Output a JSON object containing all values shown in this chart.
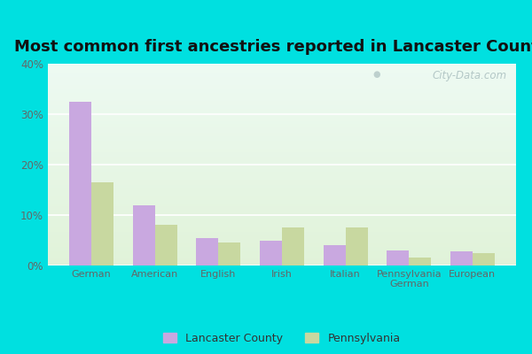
{
  "title": "Most common first ancestries reported in Lancaster County",
  "categories": [
    "German",
    "American",
    "English",
    "Irish",
    "Italian",
    "Pennsylvania\nGerman",
    "European"
  ],
  "lancaster_values": [
    32.5,
    12.0,
    5.5,
    5.0,
    4.0,
    3.0,
    2.8
  ],
  "pennsylvania_values": [
    16.5,
    8.0,
    4.5,
    7.5,
    7.5,
    1.5,
    2.5
  ],
  "lancaster_color": "#c9a8e0",
  "pennsylvania_color": "#c8d8a0",
  "ylim": [
    0,
    40
  ],
  "yticks": [
    0,
    10,
    20,
    30,
    40
  ],
  "outer_bg": "#00e0e0",
  "title_fontsize": 13,
  "bar_width": 0.35,
  "watermark": "City-Data.com"
}
